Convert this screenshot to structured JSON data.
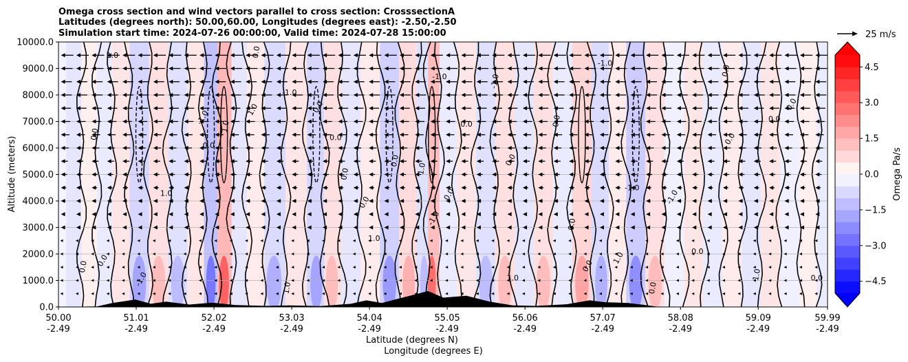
{
  "chart_data": {
    "type": "heatmap",
    "title_lines": [
      "Omega cross section and wind vectors parallel to cross section: CrosssectionA",
      "Latitudes (degrees north): 50.00,60.00, Longitudes (degrees east): -2.50,-2.50",
      "Simulation start time: 2024-07-26 00:00:00, Valid time: 2024-07-28 15:00:00"
    ],
    "ylabel": "Altitude (meters)",
    "xlabel_lat": "Latitude (degrees N)",
    "xlabel_lon": "Longitude (degrees E)",
    "ylim": [
      0,
      10000
    ],
    "y_ticks": [
      0,
      1000,
      2000,
      3000,
      4000,
      5000,
      6000,
      7000,
      8000,
      9000,
      10000
    ],
    "y_tick_labels": [
      "0.0",
      "1000.0",
      "2000.0",
      "3000.0",
      "4000.0",
      "5000.0",
      "6000.0",
      "7000.0",
      "8000.0",
      "9000.0",
      "10000.0"
    ],
    "xlim": [
      50.0,
      59.99
    ],
    "x_ticks": [
      50.0,
      51.01,
      52.02,
      53.03,
      54.04,
      55.05,
      56.06,
      57.07,
      58.08,
      59.09,
      59.99
    ],
    "x_tick_lat_labels": [
      "50.00",
      "51.01",
      "52.02",
      "53.03",
      "54.04",
      "55.05",
      "56.06",
      "57.07",
      "58.08",
      "59.09",
      "59.99"
    ],
    "x_tick_lon_labels": [
      "-2.49",
      "-2.49",
      "-2.49",
      "-2.49",
      "-2.49",
      "-2.49",
      "-2.49",
      "-2.49",
      "-2.49",
      "-2.49",
      "-2.49"
    ],
    "grid": "horizontal",
    "colorbar": {
      "label": "Omega Pa/s",
      "min": -5.0,
      "max": 5.0,
      "extend": "both",
      "ticks": [
        -4.5,
        -3.0,
        -1.5,
        0.0,
        1.5,
        3.0,
        4.5
      ],
      "tick_labels": [
        "−4.5",
        "−3.0",
        "−1.5",
        "0.0",
        "1.5",
        "3.0",
        "4.5"
      ],
      "colormap": "bwr"
    },
    "quiver_key": {
      "label": "25 m/s",
      "value": 25
    },
    "wind_rows_m": [
      500,
      1000,
      1500,
      2000,
      2500,
      3000,
      3500,
      4000,
      4500,
      5000,
      5500,
      6000,
      6500,
      7000,
      7500,
      8000,
      8500,
      9000,
      9500
    ],
    "wind_speed_by_row": [
      1,
      1,
      1,
      2,
      2,
      3,
      3,
      4,
      5,
      6,
      7,
      8,
      9,
      10,
      11,
      12,
      12,
      13,
      14
    ],
    "wind_direction": "westward (toward lower latitude)",
    "contour_levels": [
      -1.0,
      0.0,
      1.0
    ],
    "omega_columns": [
      {
        "lat": 50.2,
        "omega": -0.5
      },
      {
        "lat": 50.4,
        "omega": 0.3
      },
      {
        "lat": 50.6,
        "omega": -0.4
      },
      {
        "lat": 50.8,
        "omega": 0.5
      },
      {
        "lat": 51.05,
        "omega": -0.8
      },
      {
        "lat": 51.3,
        "omega": 0.6
      },
      {
        "lat": 51.55,
        "omega": -0.6
      },
      {
        "lat": 51.8,
        "omega": 0.5
      },
      {
        "lat": 51.98,
        "omega": -1.2
      },
      {
        "lat": 52.15,
        "omega": 1.4
      },
      {
        "lat": 52.35,
        "omega": -0.5
      },
      {
        "lat": 52.55,
        "omega": 0.4
      },
      {
        "lat": 52.8,
        "omega": -0.7
      },
      {
        "lat": 53.1,
        "omega": 0.5
      },
      {
        "lat": 53.35,
        "omega": -0.8
      },
      {
        "lat": 53.55,
        "omega": 0.6
      },
      {
        "lat": 53.8,
        "omega": -0.5
      },
      {
        "lat": 54.05,
        "omega": 0.4
      },
      {
        "lat": 54.3,
        "omega": -0.9
      },
      {
        "lat": 54.55,
        "omega": 0.7
      },
      {
        "lat": 54.75,
        "omega": -0.6
      },
      {
        "lat": 54.85,
        "omega": 1.3
      },
      {
        "lat": 55.05,
        "omega": -0.4
      },
      {
        "lat": 55.3,
        "omega": 0.5
      },
      {
        "lat": 55.55,
        "omega": -0.6
      },
      {
        "lat": 55.8,
        "omega": 0.6
      },
      {
        "lat": 56.05,
        "omega": -0.5
      },
      {
        "lat": 56.3,
        "omega": 0.6
      },
      {
        "lat": 56.55,
        "omega": -0.4
      },
      {
        "lat": 56.8,
        "omega": 0.8
      },
      {
        "lat": 57.05,
        "omega": -0.7
      },
      {
        "lat": 57.25,
        "omega": 0.4
      },
      {
        "lat": 57.5,
        "omega": -1.0
      },
      {
        "lat": 57.75,
        "omega": 0.6
      },
      {
        "lat": 58.0,
        "omega": -0.3
      },
      {
        "lat": 58.25,
        "omega": 0.5
      },
      {
        "lat": 58.5,
        "omega": -0.4
      },
      {
        "lat": 58.75,
        "omega": 0.4
      },
      {
        "lat": 59.0,
        "omega": -0.5
      },
      {
        "lat": 59.25,
        "omega": 0.5
      },
      {
        "lat": 59.5,
        "omega": -0.3
      },
      {
        "lat": 59.75,
        "omega": 0.3
      },
      {
        "lat": 59.95,
        "omega": -0.4
      }
    ],
    "terrain_m": [
      {
        "lat": 50.0,
        "h": 0
      },
      {
        "lat": 50.5,
        "h": 20
      },
      {
        "lat": 50.7,
        "h": 150
      },
      {
        "lat": 51.0,
        "h": 280
      },
      {
        "lat": 51.2,
        "h": 120
      },
      {
        "lat": 51.4,
        "h": 200
      },
      {
        "lat": 51.7,
        "h": 90
      },
      {
        "lat": 52.0,
        "h": 160
      },
      {
        "lat": 52.3,
        "h": 70
      },
      {
        "lat": 52.7,
        "h": 40
      },
      {
        "lat": 53.0,
        "h": 60
      },
      {
        "lat": 53.4,
        "h": 30
      },
      {
        "lat": 53.8,
        "h": 120
      },
      {
        "lat": 54.0,
        "h": 250
      },
      {
        "lat": 54.2,
        "h": 150
      },
      {
        "lat": 54.4,
        "h": 300
      },
      {
        "lat": 54.6,
        "h": 450
      },
      {
        "lat": 54.8,
        "h": 600
      },
      {
        "lat": 55.0,
        "h": 350
      },
      {
        "lat": 55.3,
        "h": 420
      },
      {
        "lat": 55.6,
        "h": 200
      },
      {
        "lat": 55.9,
        "h": 60
      },
      {
        "lat": 56.2,
        "h": 40
      },
      {
        "lat": 56.6,
        "h": 100
      },
      {
        "lat": 56.9,
        "h": 250
      },
      {
        "lat": 57.1,
        "h": 180
      },
      {
        "lat": 57.4,
        "h": 150
      },
      {
        "lat": 57.6,
        "h": 80
      },
      {
        "lat": 57.8,
        "h": 0
      },
      {
        "lat": 59.99,
        "h": 0
      }
    ],
    "contour_label_samples": [
      {
        "text": "0.0",
        "lat": 50.35,
        "alt": 1500
      },
      {
        "text": "0.0",
        "lat": 50.6,
        "alt": 1700
      },
      {
        "text": "1.0",
        "lat": 50.7,
        "alt": 9400
      },
      {
        "text": "0.0",
        "lat": 50.5,
        "alt": 6500
      },
      {
        "text": "-1.0",
        "lat": 51.1,
        "alt": 1000
      },
      {
        "text": "1.0",
        "lat": 51.4,
        "alt": 4200
      },
      {
        "text": "1.0",
        "lat": 52.2,
        "alt": 6800
      },
      {
        "text": "-1.0",
        "lat": 51.9,
        "alt": 7100
      },
      {
        "text": "0.0",
        "lat": 51.95,
        "alt": 6000
      },
      {
        "text": "0.0",
        "lat": 52.6,
        "alt": 9600
      },
      {
        "text": "1.0",
        "lat": 52.55,
        "alt": 7400
      },
      {
        "text": "-1.0",
        "lat": 53.0,
        "alt": 8000
      },
      {
        "text": "1.0",
        "lat": 53.0,
        "alt": 700
      },
      {
        "text": "0.0",
        "lat": 53.4,
        "alt": 7500
      },
      {
        "text": "0.0",
        "lat": 53.6,
        "alt": 6300
      },
      {
        "text": "0.0",
        "lat": 53.75,
        "alt": 5000
      },
      {
        "text": "0.0",
        "lat": 54.0,
        "alt": 3900
      },
      {
        "text": "1.0",
        "lat": 54.1,
        "alt": 2500
      },
      {
        "text": "0.0",
        "lat": 54.4,
        "alt": 5500
      },
      {
        "text": "-1.0",
        "lat": 54.9,
        "alt": 3300
      },
      {
        "text": "-1.0",
        "lat": 54.95,
        "alt": 8600
      },
      {
        "text": "1.0",
        "lat": 54.75,
        "alt": 5200
      },
      {
        "text": "0.0",
        "lat": 55.1,
        "alt": 4200
      },
      {
        "text": "0.0",
        "lat": 55.3,
        "alt": 6800
      },
      {
        "text": "-1.0",
        "lat": 55.7,
        "alt": 8500
      },
      {
        "text": "0.0",
        "lat": 55.9,
        "alt": 5500
      },
      {
        "text": "1.0",
        "lat": 55.9,
        "alt": 1000
      },
      {
        "text": "0.0",
        "lat": 56.5,
        "alt": 7000
      },
      {
        "text": "0.0",
        "lat": 56.9,
        "alt": 1500
      },
      {
        "text": "-1.0",
        "lat": 57.1,
        "alt": 9100
      },
      {
        "text": "0.0",
        "lat": 56.7,
        "alt": 3100
      },
      {
        "text": "1.0",
        "lat": 57.3,
        "alt": 1800
      },
      {
        "text": "-1.0",
        "lat": 57.45,
        "alt": 4400
      },
      {
        "text": "0.0",
        "lat": 57.75,
        "alt": 700
      },
      {
        "text": "-1.0",
        "lat": 58.0,
        "alt": 4100
      },
      {
        "text": "0.0",
        "lat": 58.3,
        "alt": 2000
      },
      {
        "text": "0.0",
        "lat": 58.7,
        "alt": 8900
      },
      {
        "text": "0.0",
        "lat": 58.75,
        "alt": 6300
      },
      {
        "text": "0.0",
        "lat": 59.3,
        "alt": 7000
      },
      {
        "text": "1.0",
        "lat": 59.1,
        "alt": 1200
      },
      {
        "text": "0.0",
        "lat": 59.55,
        "alt": 7600
      },
      {
        "text": "0.0",
        "lat": 59.85,
        "alt": 1000
      }
    ]
  }
}
